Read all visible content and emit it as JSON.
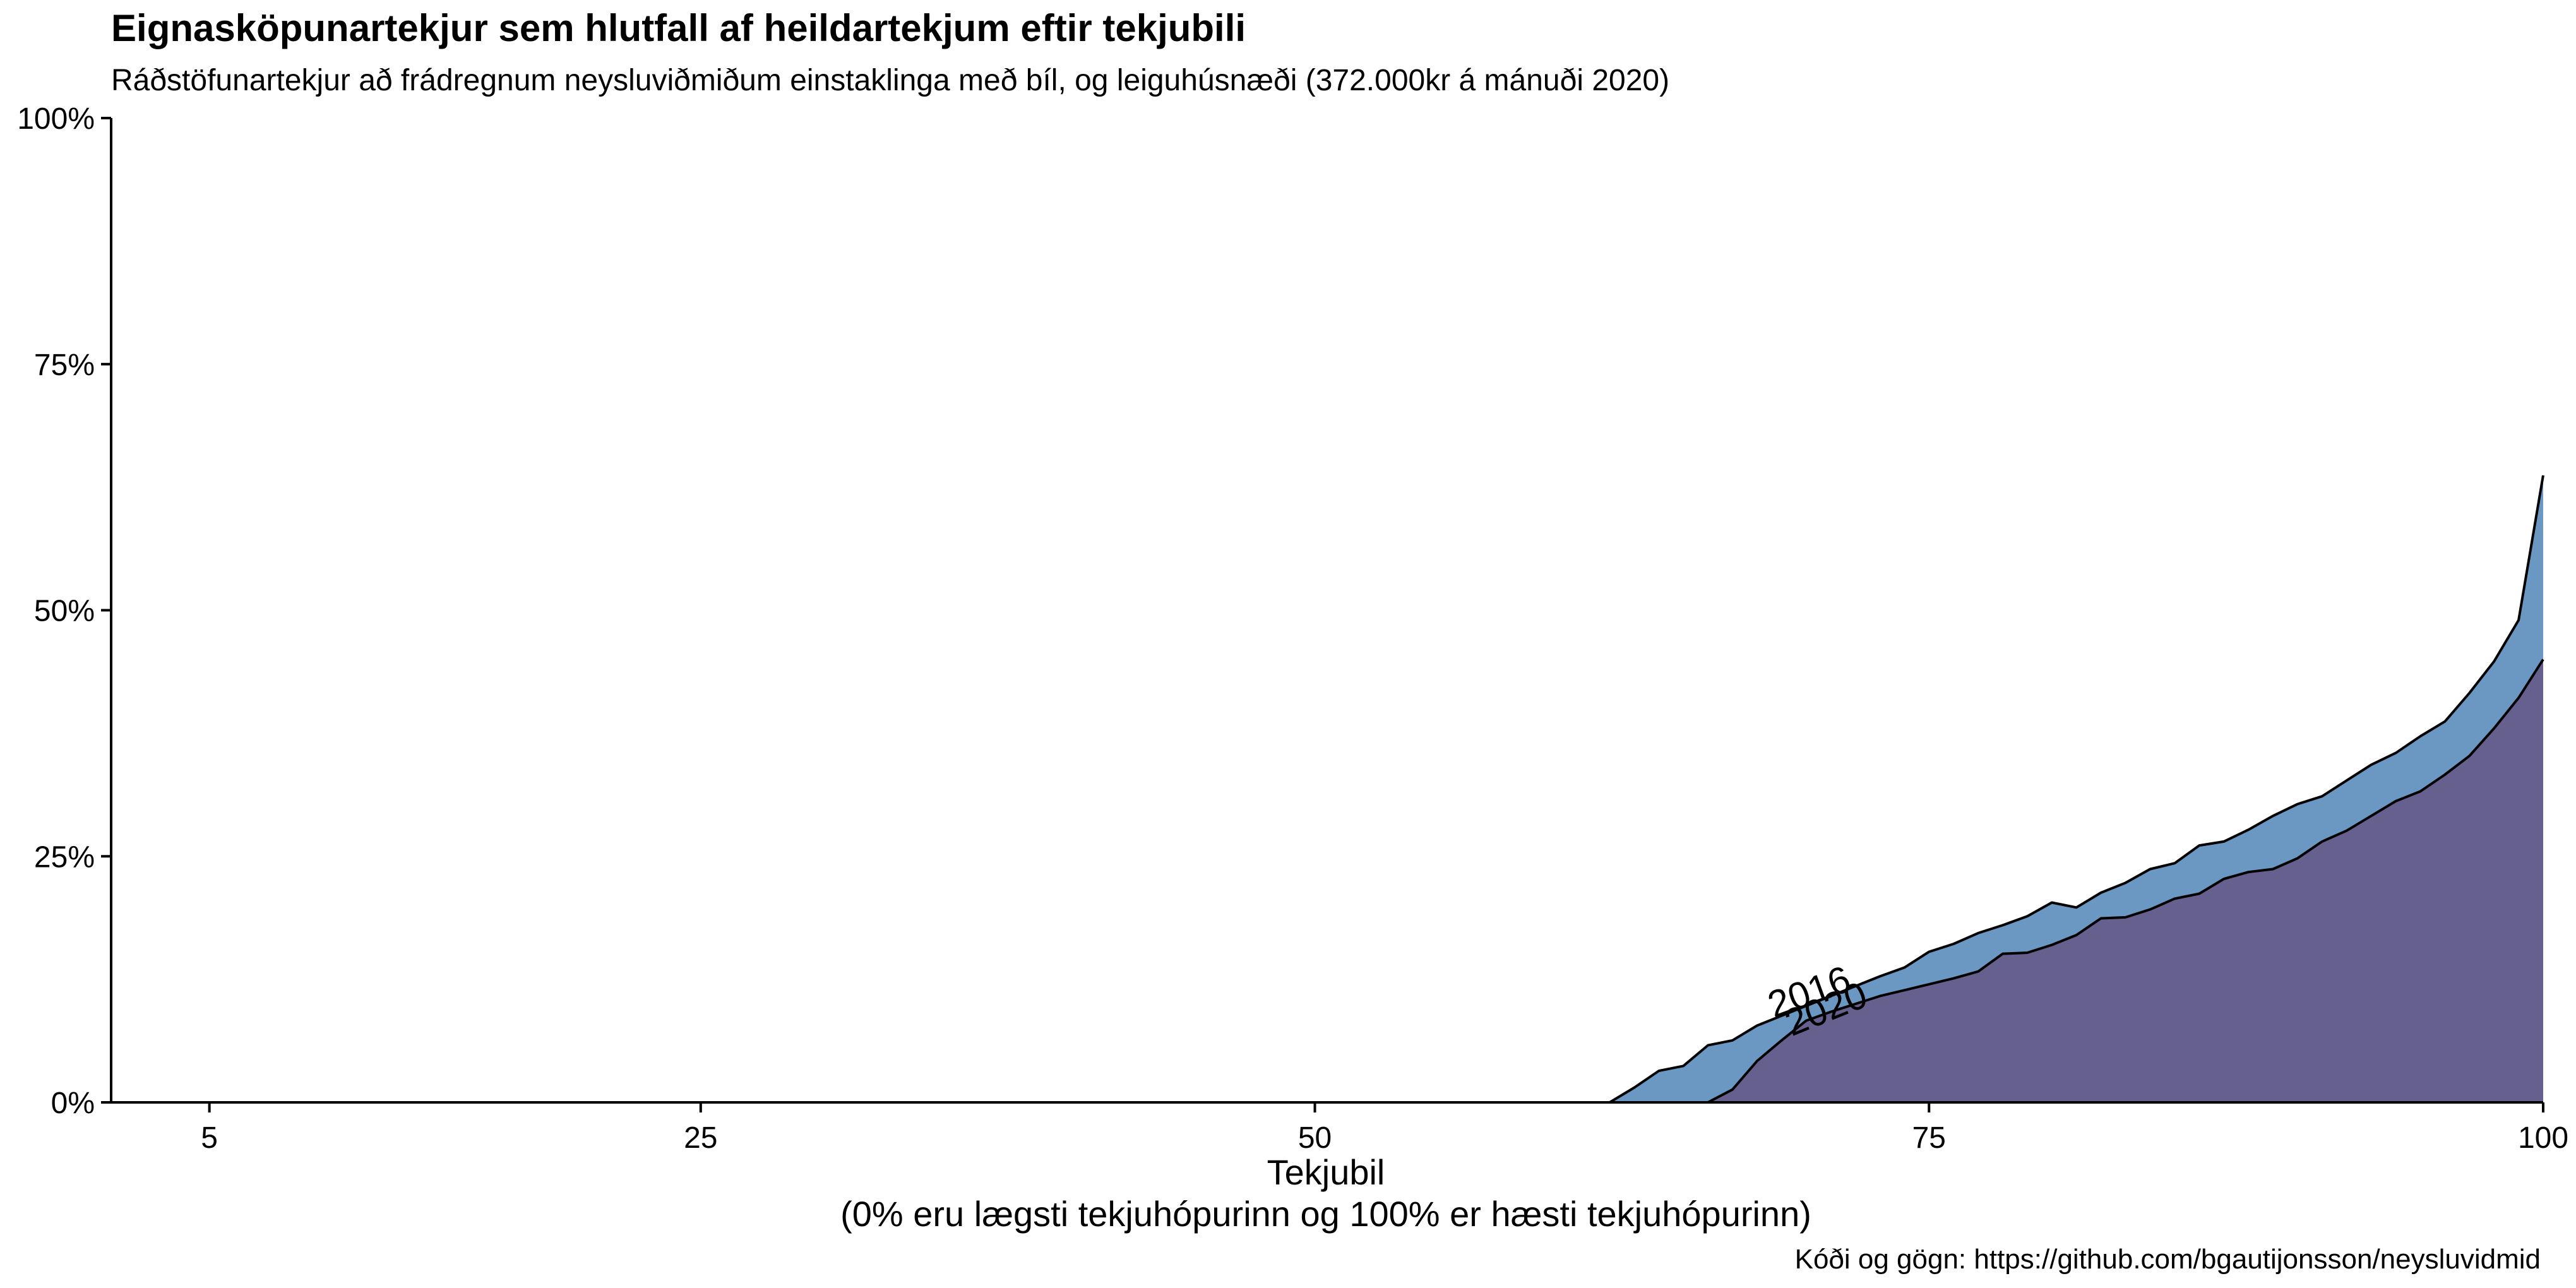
{
  "chart_data": {
    "type": "area",
    "title": "Eignasköpunartekjur sem hlutfall af heildartekjum eftir tekjubili",
    "subtitle": "Ráðstöfunartekjur að frádregnum neysluviðmiðum einstaklinga með bíl, og leiguhúsnæði (372.000kr á mánuði 2020)",
    "caption": "Kóði og gögn: https://github.com/bgautijonsson/neysluvidmid",
    "xlabel_line1": "Tekjubil",
    "xlabel_line2": "(0% eru lægsti tekjuhópurinn og 100% er hæsti tekjuhópurinn)",
    "xlim": [
      1,
      100
    ],
    "ylim": [
      0,
      1
    ],
    "x_ticks": [
      5,
      25,
      50,
      75,
      100
    ],
    "y_ticks": [
      0,
      0.25,
      0.5,
      0.75,
      1
    ],
    "y_tick_labels": [
      "0%",
      "25%",
      "50%",
      "75%",
      "100%"
    ],
    "grid": false,
    "legend": "none",
    "series": [
      {
        "name": "2016",
        "color": "#6b97c3",
        "x": [
          62,
          63,
          64,
          65,
          66,
          67,
          68,
          69,
          70,
          71,
          72,
          73,
          74,
          75,
          76,
          77,
          78,
          79,
          80,
          81,
          82,
          83,
          84,
          85,
          86,
          87,
          88,
          89,
          90,
          91,
          92,
          93,
          94,
          95,
          96,
          97,
          98,
          99,
          100
        ],
        "values": [
          0,
          0.015,
          0.032,
          0.037,
          0.058,
          0.063,
          0.078,
          0.088,
          0.098,
          0.108,
          0.118,
          0.128,
          0.137,
          0.153,
          0.161,
          0.172,
          0.18,
          0.189,
          0.203,
          0.198,
          0.213,
          0.223,
          0.237,
          0.243,
          0.261,
          0.265,
          0.277,
          0.291,
          0.303,
          0.311,
          0.327,
          0.343,
          0.355,
          0.372,
          0.387,
          0.416,
          0.448,
          0.49,
          0.637
        ]
      },
      {
        "name": "2020",
        "color": "#66608e",
        "x": [
          66,
          67,
          68,
          69,
          70,
          71,
          72,
          73,
          74,
          75,
          76,
          77,
          78,
          79,
          80,
          81,
          82,
          83,
          84,
          85,
          86,
          87,
          88,
          89,
          90,
          91,
          92,
          93,
          94,
          95,
          96,
          97,
          98,
          99,
          100
        ],
        "values": [
          0,
          0.013,
          0.042,
          0.063,
          0.083,
          0.092,
          0.1,
          0.108,
          0.114,
          0.12,
          0.126,
          0.133,
          0.151,
          0.152,
          0.16,
          0.17,
          0.187,
          0.188,
          0.196,
          0.207,
          0.212,
          0.227,
          0.234,
          0.237,
          0.248,
          0.265,
          0.276,
          0.291,
          0.306,
          0.316,
          0.333,
          0.352,
          0.38,
          0.411,
          0.45
        ]
      }
    ],
    "annotations": [
      "2016",
      "2020"
    ]
  }
}
